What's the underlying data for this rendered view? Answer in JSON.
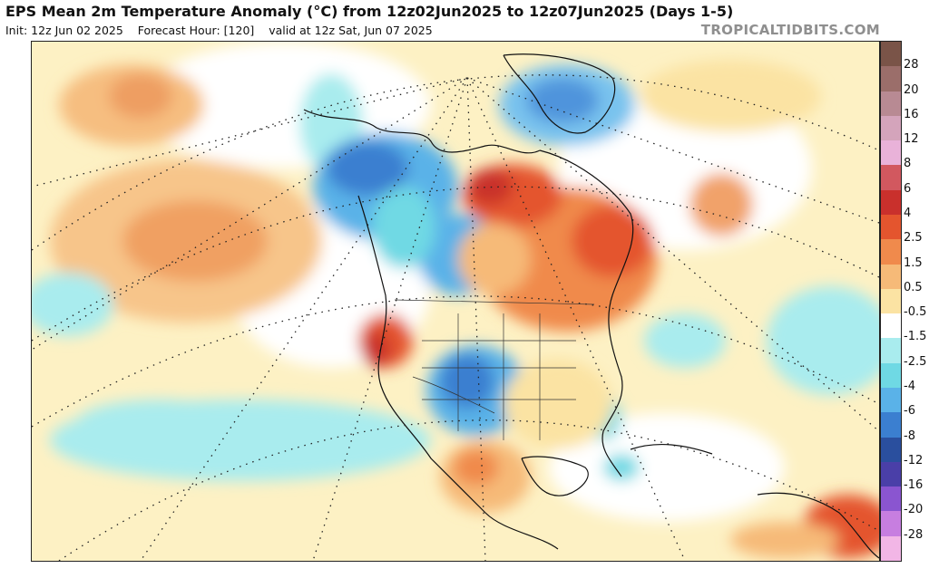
{
  "header": {
    "title": "EPS Mean 2m Temperature Anomaly (°C) from 12z02Jun2025 to 12z07Jun2025 (Days 1-5)",
    "init": "Init: 12z Jun 02 2025",
    "forecast_hour": "Forecast Hour: [120]",
    "valid": "valid at 12z Sat, Jun 07 2025",
    "brand": "TROPICALTIDBITS.COM"
  },
  "colorbar": {
    "ticks": [
      "28",
      "20",
      "16",
      "12",
      "8",
      "6",
      "4",
      "2.5",
      "1.5",
      "0.5",
      "-0.5",
      "-1.5",
      "-2.5",
      "-4",
      "-6",
      "-8",
      "-12",
      "-16",
      "-20",
      "-28"
    ],
    "colors": [
      "#7a5448",
      "#9b6e6a",
      "#b88a93",
      "#d4a4bb",
      "#e9b2d9",
      "#d2585f",
      "#c9302c",
      "#e4552e",
      "#f08a4c",
      "#f6ba78",
      "#fbe3a3",
      "#ffffff",
      "#a9ecee",
      "#6fd9e4",
      "#5ab2e8",
      "#3b7fd0",
      "#2a4f9e",
      "#4a3fa8",
      "#8a55d0",
      "#c77ee0",
      "#f2b6e6"
    ]
  }
}
